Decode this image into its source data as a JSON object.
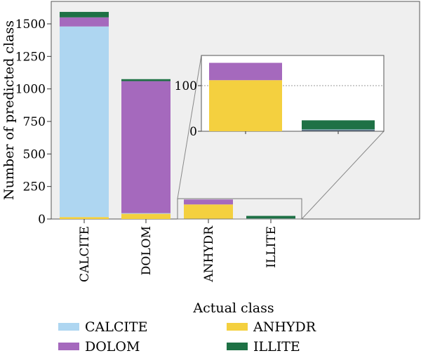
{
  "chart_data": {
    "type": "bar",
    "stacked": true,
    "categories": [
      "CALCITE",
      "DOLOM",
      "ANHYDR",
      "ILLITE"
    ],
    "series": [
      {
        "name": "ANHYDR",
        "color": "#f4d03f",
        "values": [
          15,
          40,
          112,
          0
        ]
      },
      {
        "name": "CALCITE",
        "color": "#aed6f1",
        "values": [
          1465,
          5,
          0,
          4
        ]
      },
      {
        "name": "DOLOM",
        "color": "#a569bd",
        "values": [
          70,
          1015,
          38,
          0
        ]
      },
      {
        "name": "ILLITE",
        "color": "#1e7145",
        "values": [
          42,
          15,
          0,
          20
        ]
      }
    ],
    "xlabel": "Actual class",
    "ylabel": "Number of predicted class",
    "ylim": [
      0,
      1600
    ],
    "yticks": [
      0,
      250,
      500,
      750,
      1000,
      1250,
      1500
    ],
    "legend": {
      "placement": "bottom",
      "order": [
        "CALCITE",
        "ANHYDR",
        "DOLOM",
        "ILLITE"
      ]
    },
    "inset": {
      "categories": [
        "ANHYDR",
        "ILLITE"
      ],
      "ylim": [
        0,
        160
      ],
      "yticks": [
        0,
        100
      ],
      "reference_line": 100
    }
  }
}
